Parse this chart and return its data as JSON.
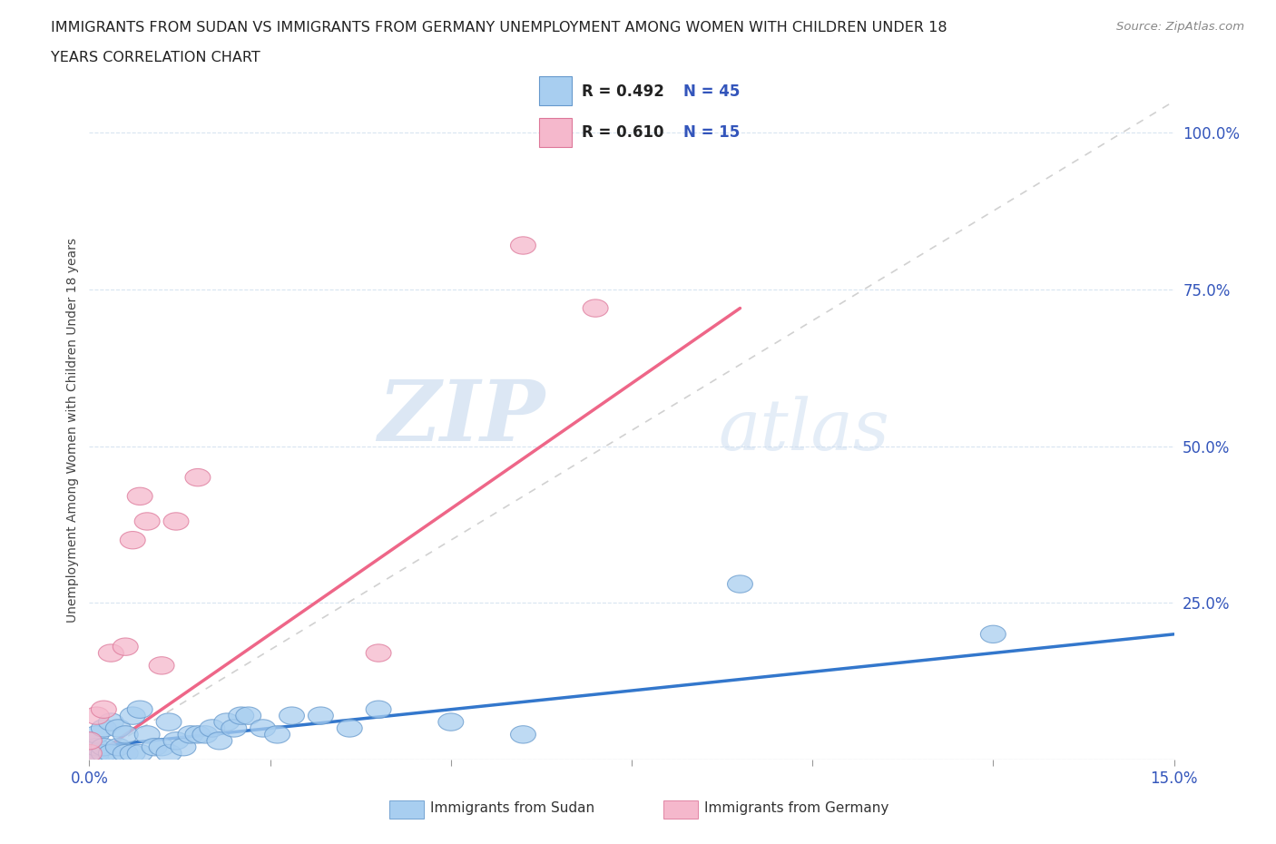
{
  "title_line1": "IMMIGRANTS FROM SUDAN VS IMMIGRANTS FROM GERMANY UNEMPLOYMENT AMONG WOMEN WITH CHILDREN UNDER 18",
  "title_line2": "YEARS CORRELATION CHART",
  "source_text": "Source: ZipAtlas.com",
  "ylabel": "Unemployment Among Women with Children Under 18 years",
  "xlim": [
    0.0,
    0.15
  ],
  "ylim": [
    0.0,
    1.05
  ],
  "xticks": [
    0.0,
    0.025,
    0.05,
    0.075,
    0.1,
    0.125,
    0.15
  ],
  "xticklabels": [
    "0.0%",
    "",
    "",
    "",
    "",
    "",
    "15.0%"
  ],
  "yticks": [
    0.0,
    0.25,
    0.5,
    0.75,
    1.0
  ],
  "yticklabels": [
    "",
    "25.0%",
    "50.0%",
    "75.0%",
    "100.0%"
  ],
  "sudan_color": "#a8cef0",
  "sudan_edge_color": "#6699cc",
  "germany_color": "#f5b8cc",
  "germany_edge_color": "#dd7799",
  "sudan_line_color": "#3377cc",
  "germany_line_color": "#ee6688",
  "r_sudan": 0.492,
  "n_sudan": 45,
  "r_germany": 0.61,
  "n_germany": 15,
  "watermark_zip": "ZIP",
  "watermark_atlas": "atlas",
  "background_color": "#ffffff",
  "grid_color": "#d8e4f0",
  "legend_text_color": "#222222",
  "legend_num_color": "#3355bb",
  "sudan_x": [
    0.0,
    0.0,
    0.001,
    0.001,
    0.001,
    0.001,
    0.002,
    0.002,
    0.002,
    0.003,
    0.003,
    0.004,
    0.004,
    0.005,
    0.005,
    0.006,
    0.006,
    0.007,
    0.007,
    0.008,
    0.009,
    0.01,
    0.011,
    0.011,
    0.012,
    0.013,
    0.014,
    0.015,
    0.016,
    0.017,
    0.018,
    0.019,
    0.02,
    0.021,
    0.022,
    0.024,
    0.026,
    0.028,
    0.032,
    0.036,
    0.04,
    0.05,
    0.06,
    0.09,
    0.125
  ],
  "sudan_y": [
    0.01,
    0.03,
    0.0,
    0.01,
    0.02,
    0.04,
    0.01,
    0.02,
    0.05,
    0.01,
    0.06,
    0.02,
    0.05,
    0.01,
    0.04,
    0.01,
    0.07,
    0.01,
    0.08,
    0.04,
    0.02,
    0.02,
    0.01,
    0.06,
    0.03,
    0.02,
    0.04,
    0.04,
    0.04,
    0.05,
    0.03,
    0.06,
    0.05,
    0.07,
    0.07,
    0.05,
    0.04,
    0.07,
    0.07,
    0.05,
    0.08,
    0.06,
    0.04,
    0.28,
    0.2
  ],
  "germany_x": [
    0.0,
    0.0,
    0.001,
    0.002,
    0.003,
    0.005,
    0.006,
    0.007,
    0.008,
    0.01,
    0.012,
    0.015,
    0.04,
    0.06,
    0.07
  ],
  "germany_y": [
    0.01,
    0.03,
    0.07,
    0.08,
    0.17,
    0.18,
    0.35,
    0.42,
    0.38,
    0.15,
    0.38,
    0.45,
    0.17,
    0.82,
    0.72
  ],
  "sudan_line_x0": 0.0,
  "sudan_line_y0": 0.02,
  "sudan_line_x1": 0.15,
  "sudan_line_y1": 0.2,
  "germany_line_x0": 0.0,
  "germany_line_y0": 0.0,
  "germany_line_x1": 0.09,
  "germany_line_y1": 0.72
}
